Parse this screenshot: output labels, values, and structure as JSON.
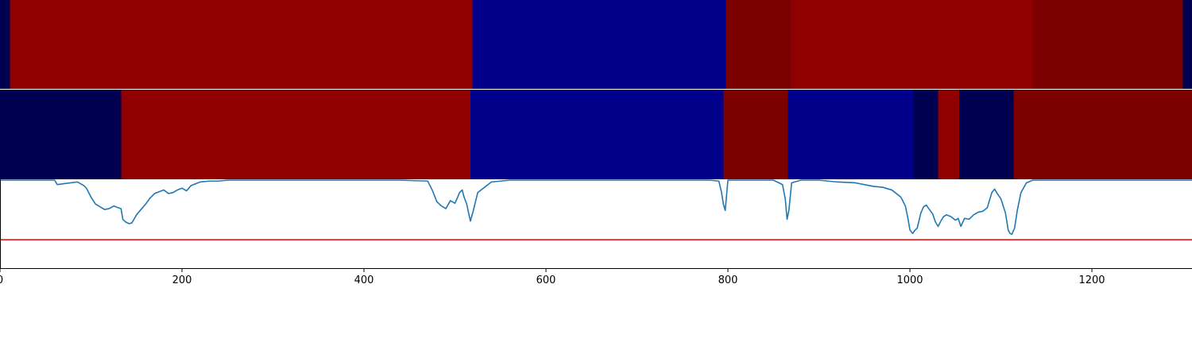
{
  "chart_data": {
    "type": "heatmap",
    "title": "",
    "xlabel": "",
    "ylabel": "",
    "xlim": [
      0,
      1310
    ],
    "grid": false,
    "legend": "none",
    "x_ticks": [
      0,
      200,
      400,
      600,
      800,
      1000,
      1200
    ],
    "x_tick_labels": [
      "0",
      "200",
      "400",
      "600",
      "800",
      "1000",
      "1200"
    ],
    "colors": {
      "dark_navy": "#000050",
      "blue": "#00008b",
      "red": "#8f0000",
      "dark_red": "#7d0000",
      "line": "#1f77b4",
      "threshold": "#e31a1c",
      "axis": "#000000"
    },
    "tracks": [
      {
        "segments": [
          {
            "start": 0,
            "end": 11,
            "color": "dark_navy"
          },
          {
            "start": 11,
            "end": 519,
            "color": "red"
          },
          {
            "start": 519,
            "end": 798,
            "color": "blue"
          },
          {
            "start": 798,
            "end": 869,
            "color": "dark_red"
          },
          {
            "start": 869,
            "end": 1135,
            "color": "red"
          },
          {
            "start": 1135,
            "end": 1300,
            "color": "dark_red"
          },
          {
            "start": 1300,
            "end": 1310,
            "color": "dark_navy"
          }
        ]
      },
      {
        "segments": [
          {
            "start": 0,
            "end": 133,
            "color": "dark_navy"
          },
          {
            "start": 133,
            "end": 517,
            "color": "red"
          },
          {
            "start": 517,
            "end": 795,
            "color": "blue"
          },
          {
            "start": 795,
            "end": 866,
            "color": "dark_red"
          },
          {
            "start": 866,
            "end": 1004,
            "color": "blue"
          },
          {
            "start": 1004,
            "end": 1031,
            "color": "dark_navy"
          },
          {
            "start": 1031,
            "end": 1054,
            "color": "red"
          },
          {
            "start": 1054,
            "end": 1114,
            "color": "dark_navy"
          },
          {
            "start": 1114,
            "end": 1310,
            "color": "dark_red"
          }
        ]
      }
    ],
    "line_series": {
      "y_range": [
        0,
        1
      ],
      "threshold": 0.32,
      "x": [
        0,
        20,
        45,
        60,
        63,
        70,
        85,
        92,
        95,
        100,
        105,
        110,
        115,
        120,
        125,
        130,
        133,
        135,
        138,
        142,
        145,
        150,
        155,
        160,
        165,
        170,
        175,
        180,
        185,
        190,
        195,
        200,
        205,
        210,
        215,
        220,
        230,
        240,
        250,
        260,
        300,
        350,
        400,
        440,
        470,
        475,
        480,
        485,
        490,
        495,
        500,
        503,
        505,
        508,
        510,
        513,
        515,
        517,
        520,
        525,
        540,
        560,
        600,
        700,
        780,
        790,
        793,
        795,
        797,
        800,
        850,
        860,
        863,
        865,
        867,
        870,
        880,
        900,
        920,
        940,
        960,
        970,
        980,
        990,
        995,
        998,
        1000,
        1003,
        1005,
        1008,
        1012,
        1015,
        1018,
        1020,
        1025,
        1028,
        1031,
        1034,
        1037,
        1040,
        1045,
        1050,
        1053,
        1056,
        1060,
        1065,
        1070,
        1075,
        1080,
        1085,
        1090,
        1093,
        1096,
        1100,
        1105,
        1108,
        1110,
        1112,
        1115,
        1118,
        1122,
        1128,
        1135,
        1150,
        1200,
        1250,
        1300,
        1310
      ],
      "y": [
        0.99,
        0.99,
        0.99,
        0.99,
        0.94,
        0.95,
        0.97,
        0.93,
        0.9,
        0.8,
        0.72,
        0.69,
        0.66,
        0.67,
        0.7,
        0.68,
        0.67,
        0.55,
        0.52,
        0.5,
        0.51,
        0.6,
        0.66,
        0.72,
        0.79,
        0.84,
        0.86,
        0.88,
        0.84,
        0.85,
        0.88,
        0.9,
        0.87,
        0.93,
        0.95,
        0.97,
        0.98,
        0.98,
        0.99,
        0.99,
        0.99,
        0.99,
        0.99,
        0.99,
        0.98,
        0.88,
        0.75,
        0.7,
        0.67,
        0.76,
        0.73,
        0.8,
        0.85,
        0.88,
        0.8,
        0.72,
        0.62,
        0.53,
        0.64,
        0.85,
        0.97,
        0.99,
        0.99,
        0.99,
        0.99,
        0.98,
        0.85,
        0.72,
        0.65,
        0.99,
        0.99,
        0.94,
        0.78,
        0.55,
        0.65,
        0.96,
        0.99,
        0.99,
        0.97,
        0.96,
        0.92,
        0.91,
        0.88,
        0.8,
        0.7,
        0.55,
        0.43,
        0.39,
        0.42,
        0.45,
        0.62,
        0.69,
        0.71,
        0.68,
        0.61,
        0.52,
        0.47,
        0.53,
        0.58,
        0.6,
        0.58,
        0.54,
        0.56,
        0.47,
        0.56,
        0.55,
        0.6,
        0.63,
        0.64,
        0.68,
        0.85,
        0.89,
        0.84,
        0.78,
        0.62,
        0.43,
        0.39,
        0.38,
        0.45,
        0.65,
        0.85,
        0.96,
        0.99,
        0.99,
        0.99,
        0.99,
        0.99,
        0.99
      ]
    }
  }
}
